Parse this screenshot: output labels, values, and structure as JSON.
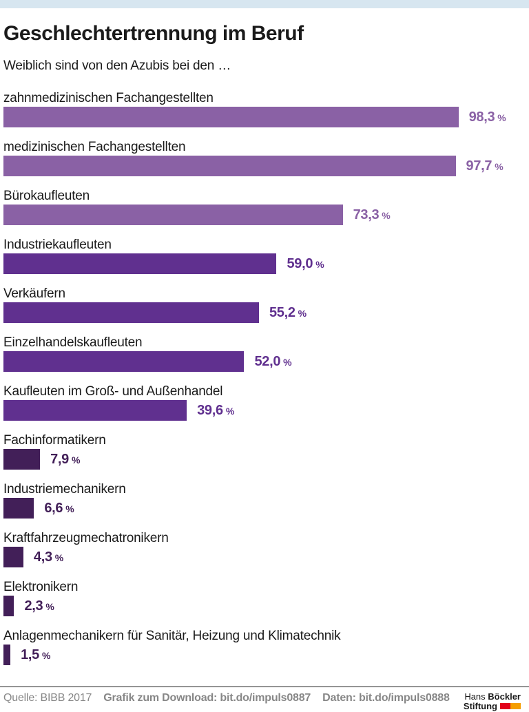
{
  "page": {
    "title": "Geschlechtertrennung im Beruf",
    "subtitle": "Weiblich sind von den Azubis bei den …"
  },
  "chart_data": {
    "type": "bar",
    "orientation": "horizontal",
    "title": "Geschlechtertrennung im Beruf",
    "subtitle": "Weiblich sind von den Azubis bei den …",
    "unit": "%",
    "xlim": [
      0,
      100
    ],
    "grid": false,
    "legend": false,
    "value_label_position": "right-of-bar",
    "categories": [
      "zahnmedizinischen Fachangestellten",
      "medizinischen Fachangestellten",
      "Bürokaufleuten",
      "Industriekaufleuten",
      "Verkäufern",
      "Einzelhandelskaufleuten",
      "Kaufleuten im Groß- und Außenhandel",
      "Fachinformatikern",
      "Industriemechanikern",
      "Kraftfahrzeugmechatronikern",
      "Elektronikern",
      "Anlagenmechanikern für Sanitär, Heizung und Klimatechnik"
    ],
    "values": [
      98.3,
      97.7,
      73.3,
      59.0,
      55.2,
      52.0,
      39.6,
      7.9,
      6.6,
      4.3,
      2.3,
      1.5
    ],
    "bar_colors": {
      "high": "#8a61a5",
      "mid": "#60308f",
      "low": "#421f58"
    },
    "rows": [
      {
        "label": "zahnmedizinischen Fachangestellten",
        "value": 98.3,
        "value_label": "98,3",
        "color": "#8a61a5"
      },
      {
        "label": "medizinischen Fachangestellten",
        "value": 97.7,
        "value_label": "97,7",
        "color": "#8a61a5"
      },
      {
        "label": "Bürokaufleuten",
        "value": 73.3,
        "value_label": "73,3",
        "color": "#8a61a5"
      },
      {
        "label": "Industriekaufleuten",
        "value": 59.0,
        "value_label": "59,0",
        "color": "#60308f"
      },
      {
        "label": "Verkäufern",
        "value": 55.2,
        "value_label": "55,2",
        "color": "#60308f"
      },
      {
        "label": "Einzelhandelskaufleuten",
        "value": 52.0,
        "value_label": "52,0",
        "color": "#60308f"
      },
      {
        "label": "Kaufleuten im Groß- und Außenhandel",
        "value": 39.6,
        "value_label": "39,6",
        "color": "#60308f"
      },
      {
        "label": "Fachinformatikern",
        "value": 7.9,
        "value_label": "7,9",
        "color": "#421f58"
      },
      {
        "label": "Industriemechanikern",
        "value": 6.6,
        "value_label": "6,6",
        "color": "#421f58"
      },
      {
        "label": "Kraftfahrzeugmechatronikern",
        "value": 4.3,
        "value_label": "4,3",
        "color": "#421f58"
      },
      {
        "label": "Elektronikern",
        "value": 2.3,
        "value_label": "2,3",
        "color": "#421f58"
      },
      {
        "label": "Anlagenmechanikern für Sanitär, Heizung und Klimatechnik",
        "value": 1.5,
        "value_label": "1,5",
        "color": "#421f58"
      }
    ]
  },
  "footer": {
    "source": "Quelle: BIBB 2017",
    "download": "Grafik zum Download: bit.do/impuls0887",
    "data": "Daten: bit.do/impuls0888",
    "logo": {
      "line1_regular": "Hans",
      "line1_bold": "Böckler",
      "line2_bold": "Stiftung",
      "block_red": "#e2001a",
      "block_orange": "#f59e00"
    }
  },
  "colors": {
    "top_strip": "#d7e6f0",
    "text": "#1a1a1a",
    "footer_text": "#878787"
  }
}
